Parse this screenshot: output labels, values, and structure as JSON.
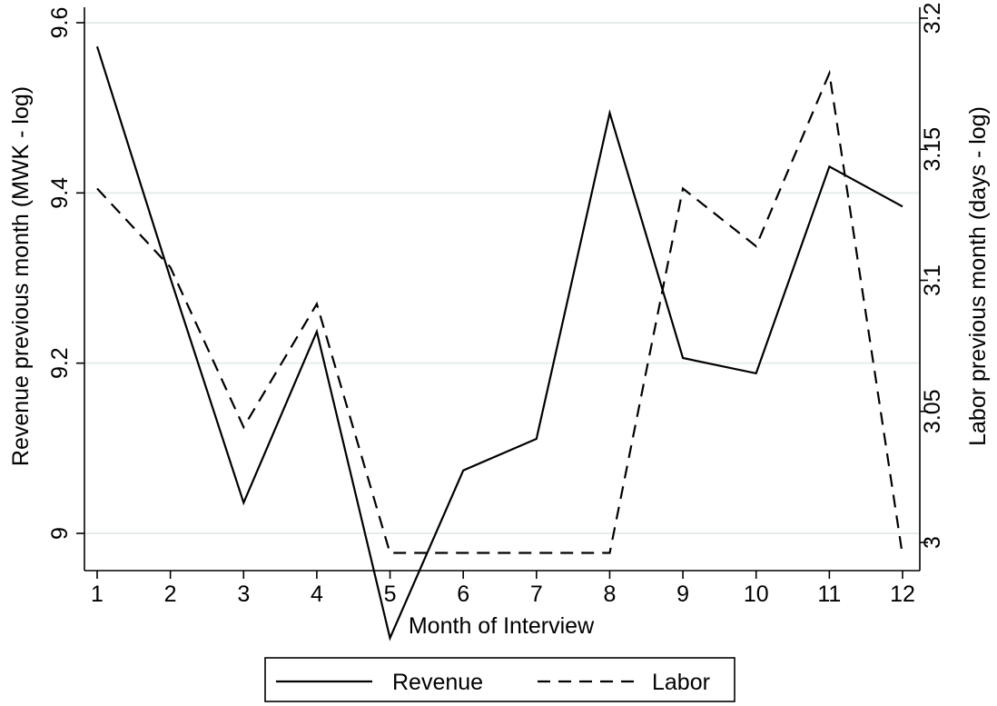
{
  "chart_data": {
    "type": "line",
    "xlabel": "Month of Interview",
    "ylabel_left": "Revenue previous month (MWK - log)",
    "ylabel_right": "Labor previous month (days - log)",
    "x": [
      1,
      2,
      3,
      4,
      5,
      6,
      7,
      8,
      9,
      10,
      11,
      12
    ],
    "x_ticks": [
      "1",
      "2",
      "3",
      "4",
      "5",
      "6",
      "7",
      "8",
      "9",
      "10",
      "11",
      "12"
    ],
    "y_left_ticks": [
      "9",
      "9.2",
      "9.4",
      "9.6"
    ],
    "y_right_ticks": [
      "3",
      "3.05",
      "3.1",
      "3.15",
      "3.2"
    ],
    "ylim_left": [
      8.87,
      9.62
    ],
    "ylim_right": [
      2.99,
      3.21
    ],
    "grid": true,
    "legend_position": "bottom",
    "series": [
      {
        "name": "Revenue",
        "axis": "left",
        "style": "solid",
        "values": [
          9.572,
          9.3,
          9.036,
          9.237,
          8.877,
          9.074,
          9.111,
          9.494,
          9.206,
          9.188,
          9.431,
          9.384
        ]
      },
      {
        "name": "Labor",
        "axis": "right",
        "style": "dashed",
        "values": [
          3.135,
          3.105,
          3.044,
          3.091,
          2.996,
          2.996,
          2.996,
          2.996,
          3.135,
          3.113,
          3.179,
          2.995
        ]
      }
    ]
  }
}
